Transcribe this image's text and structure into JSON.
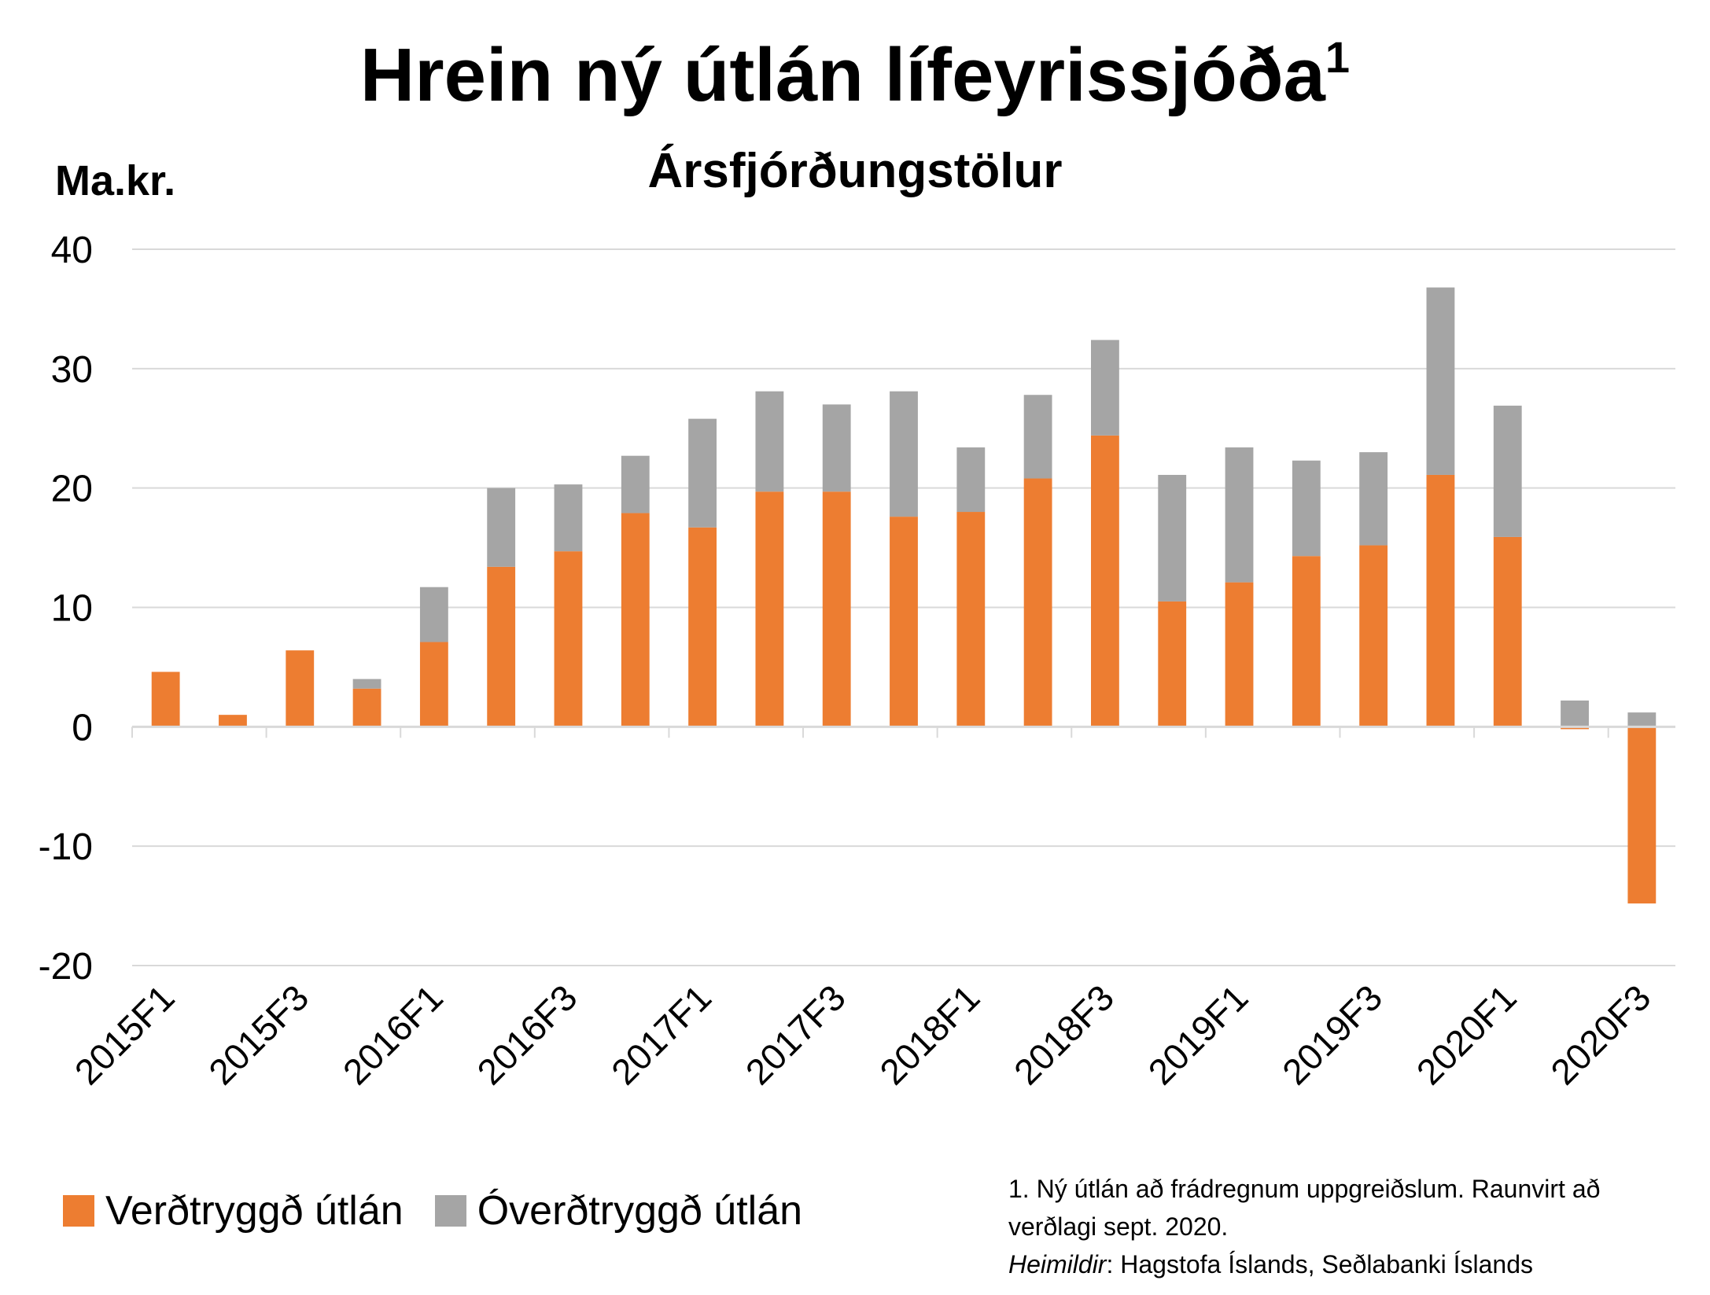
{
  "chart_data": {
    "type": "bar",
    "stacked": true,
    "title": "Hrein ný útlán lífeyrissjóða",
    "title_superscript": "1",
    "subtitle": "Ársfjórðungstölur",
    "ylabel": "Ma.kr.",
    "ylim": [
      -20,
      40
    ],
    "yticks": [
      -20,
      -10,
      0,
      10,
      20,
      30,
      40
    ],
    "grid": true,
    "legend_position": "bottom-left",
    "categories": [
      "2015F1",
      "2015F2",
      "2015F3",
      "2015F4",
      "2016F1",
      "2016F2",
      "2016F3",
      "2016F4",
      "2017F1",
      "2017F2",
      "2017F3",
      "2017F4",
      "2018F1",
      "2018F2",
      "2018F3",
      "2018F4",
      "2019F1",
      "2019F2",
      "2019F3",
      "2019F4",
      "2020F1",
      "2020F2",
      "2020F3"
    ],
    "tick_labels": [
      "2015F1",
      "2015F3",
      "2016F1",
      "2016F3",
      "2017F1",
      "2017F3",
      "2018F1",
      "2018F3",
      "2019F1",
      "2019F3",
      "2020F1",
      "2020F3"
    ],
    "series": [
      {
        "name": "Verðtryggð útlán",
        "color": "#ED7D31",
        "values": [
          4.6,
          1.0,
          6.4,
          3.2,
          7.1,
          13.4,
          14.7,
          17.9,
          16.7,
          19.7,
          19.7,
          17.6,
          18.0,
          20.8,
          24.4,
          10.5,
          12.1,
          14.3,
          15.2,
          21.1,
          15.9,
          -0.2,
          -14.8
        ]
      },
      {
        "name": "Óverðtryggð útlán",
        "color": "#A5A5A5",
        "values": [
          0.0,
          0.0,
          0.0,
          0.8,
          4.6,
          6.6,
          5.6,
          4.8,
          9.1,
          8.4,
          7.3,
          10.5,
          5.4,
          7.0,
          8.0,
          10.6,
          11.3,
          8.0,
          7.8,
          15.7,
          11.0,
          2.2,
          1.2
        ]
      }
    ]
  },
  "footnote": {
    "line1": "1. Ný útlán að frádregnum uppgreiðslum. Raunvirt að",
    "line2": "verðlagi sept. 2020.",
    "sources_label": "Heimildir",
    "sources_text": ": Hagstofa Íslands, Seðlabanki Íslands"
  }
}
